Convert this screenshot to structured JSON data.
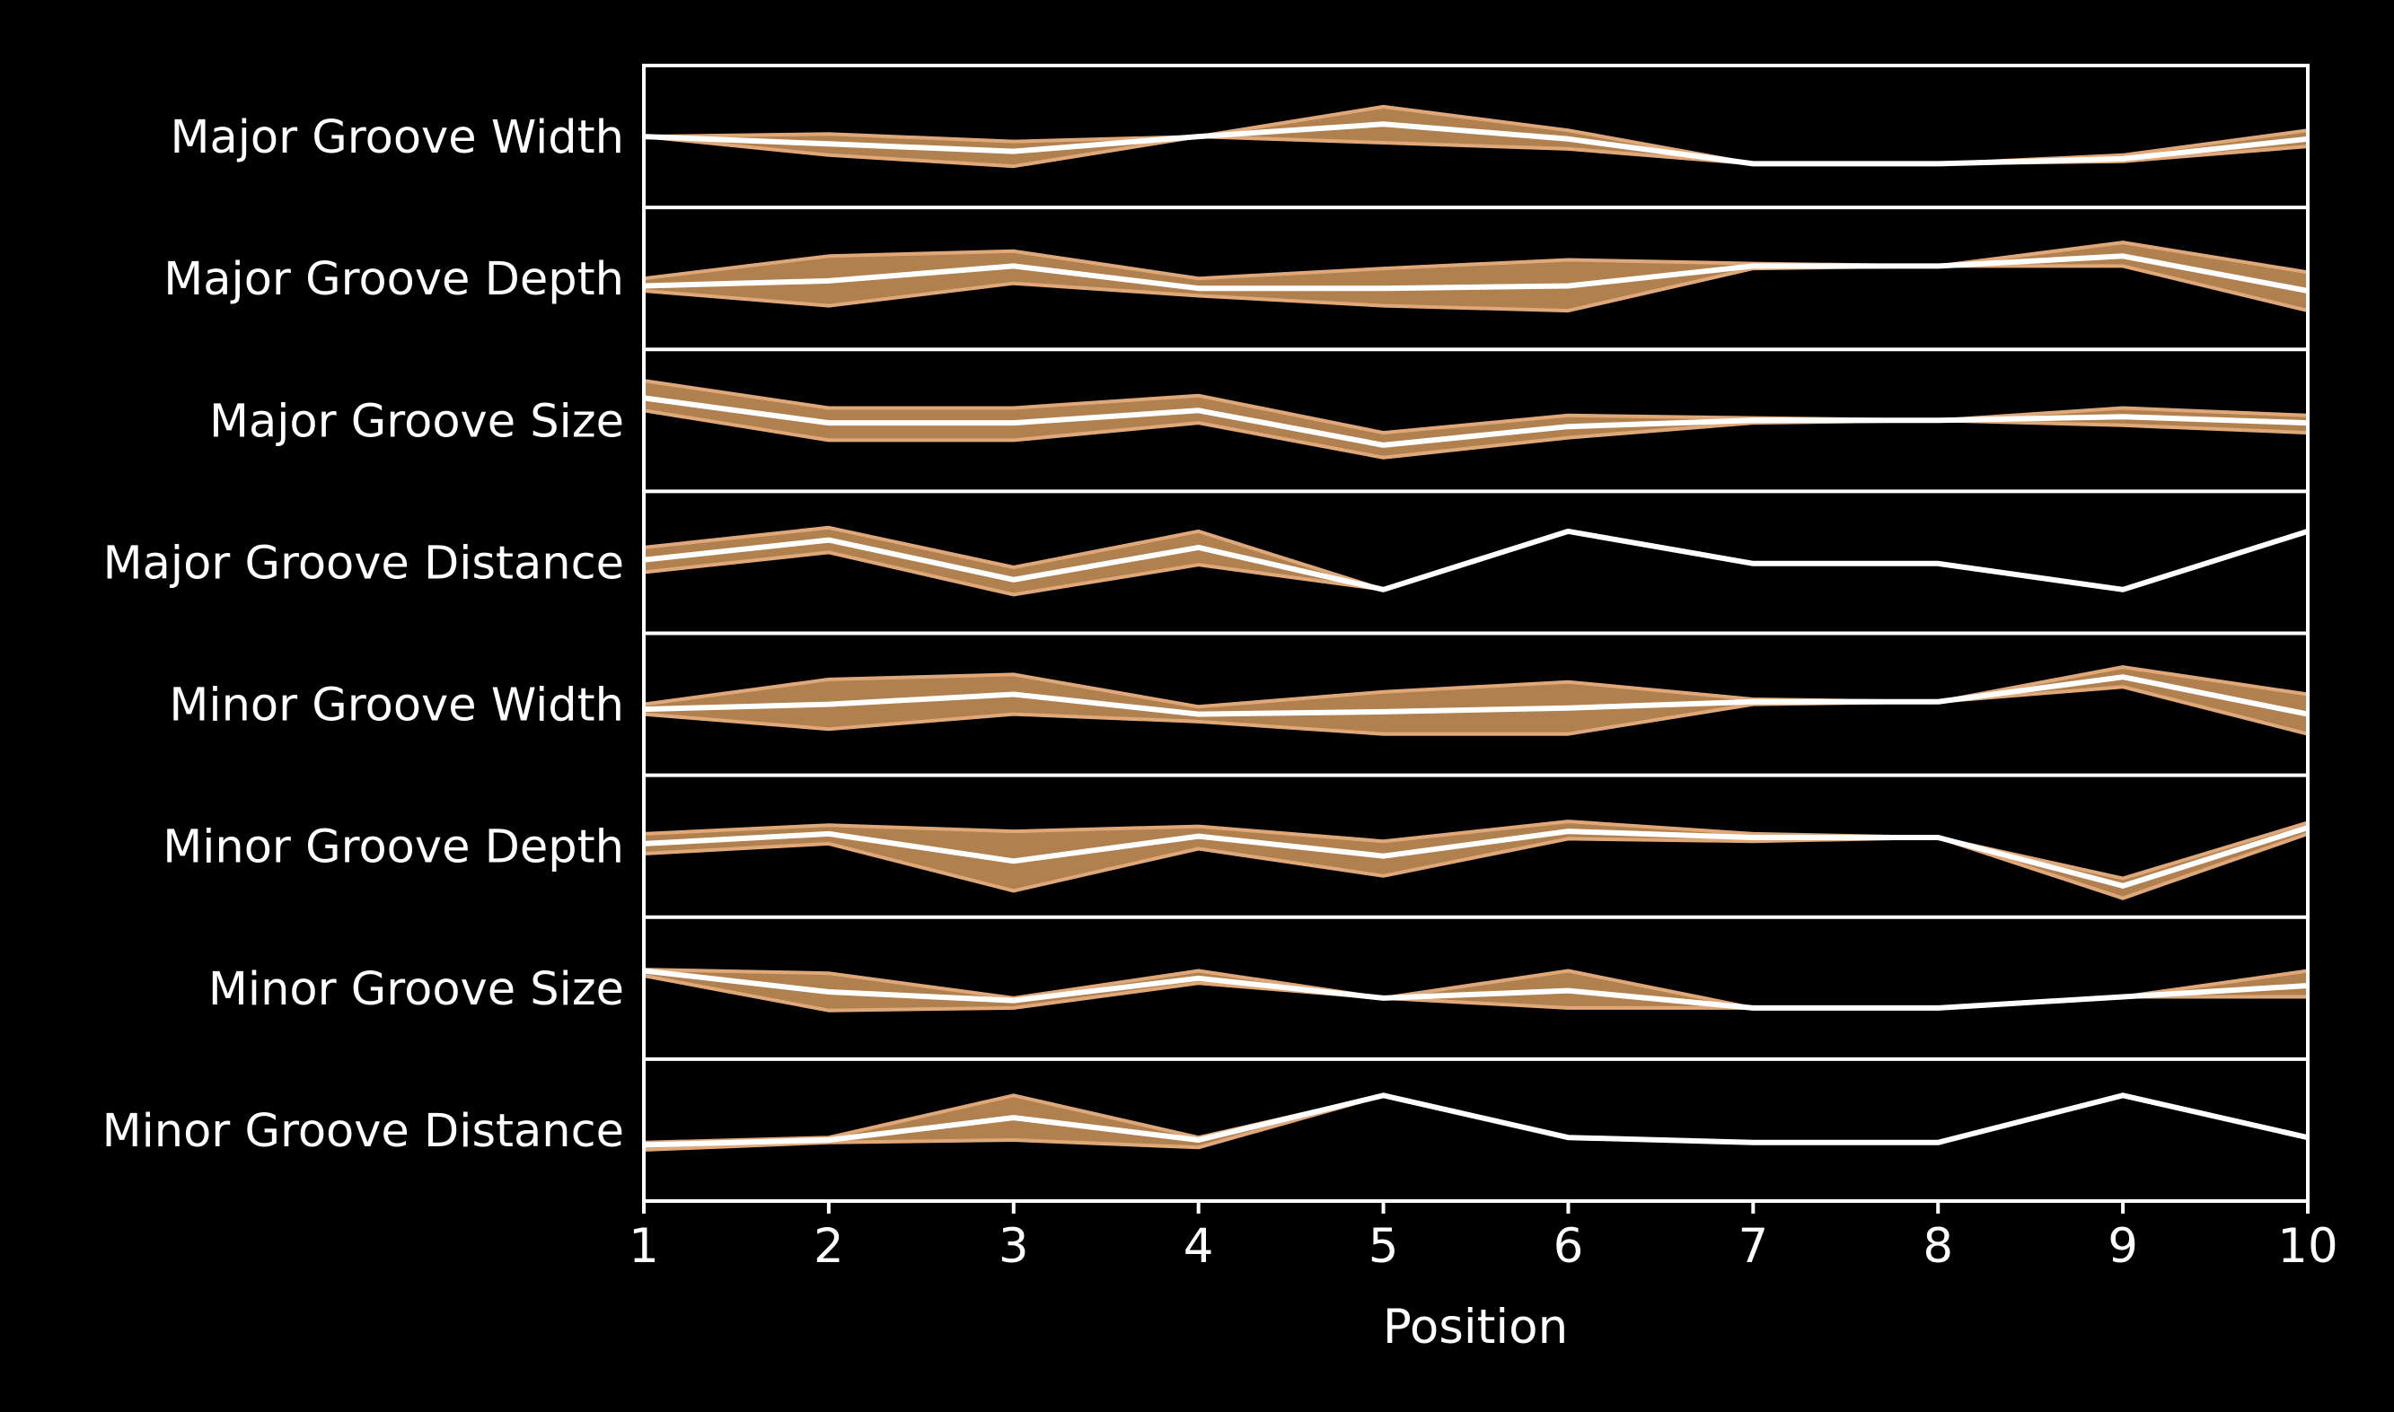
{
  "colors": {
    "background": "#000000",
    "axes": "#ffffff",
    "text": "#ffffff",
    "band_fill": "#b0804f",
    "band_edge": "#e0a878",
    "mean_line": "#ffffff"
  },
  "chart_data": {
    "type": "line",
    "title": "",
    "xlabel": "Position",
    "ylabel": "",
    "x": [
      1,
      2,
      3,
      4,
      5,
      6,
      7,
      8,
      9,
      10
    ],
    "xticks": [
      "1",
      "2",
      "3",
      "4",
      "5",
      "6",
      "7",
      "8",
      "9",
      "10"
    ],
    "xlim": [
      1,
      10
    ],
    "ylim": [
      0,
      1
    ],
    "grid": false,
    "legend": "none",
    "series": [
      {
        "name": "Major Groove Width",
        "mean": [
          0.5,
          0.44,
          0.38,
          0.5,
          0.6,
          0.48,
          0.28,
          0.28,
          0.32,
          0.48
        ],
        "upper": [
          0.5,
          0.52,
          0.46,
          0.5,
          0.74,
          0.55,
          0.28,
          0.28,
          0.35,
          0.55
        ],
        "lower": [
          0.5,
          0.35,
          0.26,
          0.5,
          0.45,
          0.4,
          0.28,
          0.28,
          0.3,
          0.42
        ]
      },
      {
        "name": "Major Groove Depth",
        "mean": [
          0.44,
          0.48,
          0.6,
          0.42,
          0.42,
          0.44,
          0.6,
          0.6,
          0.68,
          0.4
        ],
        "upper": [
          0.5,
          0.68,
          0.72,
          0.5,
          0.58,
          0.65,
          0.62,
          0.6,
          0.79,
          0.55
        ],
        "lower": [
          0.4,
          0.28,
          0.46,
          0.36,
          0.28,
          0.24,
          0.58,
          0.6,
          0.6,
          0.24
        ]
      },
      {
        "name": "Major Groove Size",
        "mean": [
          0.68,
          0.48,
          0.48,
          0.58,
          0.3,
          0.45,
          0.5,
          0.5,
          0.53,
          0.48
        ],
        "upper": [
          0.82,
          0.6,
          0.6,
          0.7,
          0.4,
          0.54,
          0.52,
          0.5,
          0.6,
          0.54
        ],
        "lower": [
          0.58,
          0.34,
          0.34,
          0.48,
          0.2,
          0.36,
          0.48,
          0.5,
          0.46,
          0.4
        ]
      },
      {
        "name": "Major Groove Distance",
        "mean": [
          0.52,
          0.68,
          0.36,
          0.62,
          0.28,
          0.75,
          0.49,
          0.49,
          0.28,
          0.75
        ],
        "upper": [
          0.62,
          0.78,
          0.46,
          0.75,
          0.28,
          0.75,
          0.49,
          0.49,
          0.28,
          0.75
        ],
        "lower": [
          0.42,
          0.58,
          0.24,
          0.48,
          0.28,
          0.75,
          0.49,
          0.49,
          0.28,
          0.75
        ]
      },
      {
        "name": "Minor Groove Width",
        "mean": [
          0.46,
          0.5,
          0.58,
          0.42,
          0.44,
          0.47,
          0.52,
          0.52,
          0.72,
          0.42
        ],
        "upper": [
          0.5,
          0.7,
          0.74,
          0.48,
          0.6,
          0.68,
          0.54,
          0.52,
          0.8,
          0.58
        ],
        "lower": [
          0.42,
          0.3,
          0.42,
          0.36,
          0.26,
          0.26,
          0.5,
          0.52,
          0.64,
          0.26
        ]
      },
      {
        "name": "Minor Groove Depth",
        "mean": [
          0.52,
          0.6,
          0.38,
          0.58,
          0.42,
          0.62,
          0.57,
          0.57,
          0.18,
          0.65
        ],
        "upper": [
          0.6,
          0.67,
          0.62,
          0.66,
          0.54,
          0.7,
          0.6,
          0.57,
          0.24,
          0.69
        ],
        "lower": [
          0.44,
          0.52,
          0.14,
          0.48,
          0.26,
          0.56,
          0.54,
          0.57,
          0.08,
          0.6
        ]
      },
      {
        "name": "Minor Groove Size",
        "mean": [
          0.64,
          0.47,
          0.4,
          0.58,
          0.42,
          0.48,
          0.34,
          0.34,
          0.43,
          0.52
        ],
        "upper": [
          0.65,
          0.62,
          0.42,
          0.64,
          0.42,
          0.64,
          0.34,
          0.34,
          0.43,
          0.64
        ],
        "lower": [
          0.6,
          0.32,
          0.34,
          0.54,
          0.42,
          0.34,
          0.34,
          0.34,
          0.43,
          0.43
        ]
      },
      {
        "name": "Minor Groove Distance",
        "mean": [
          0.38,
          0.42,
          0.6,
          0.42,
          0.78,
          0.44,
          0.4,
          0.4,
          0.78,
          0.44
        ],
        "upper": [
          0.4,
          0.44,
          0.78,
          0.44,
          0.78,
          0.44,
          0.4,
          0.4,
          0.78,
          0.44
        ],
        "lower": [
          0.34,
          0.4,
          0.42,
          0.36,
          0.78,
          0.44,
          0.4,
          0.4,
          0.78,
          0.44
        ]
      }
    ]
  }
}
